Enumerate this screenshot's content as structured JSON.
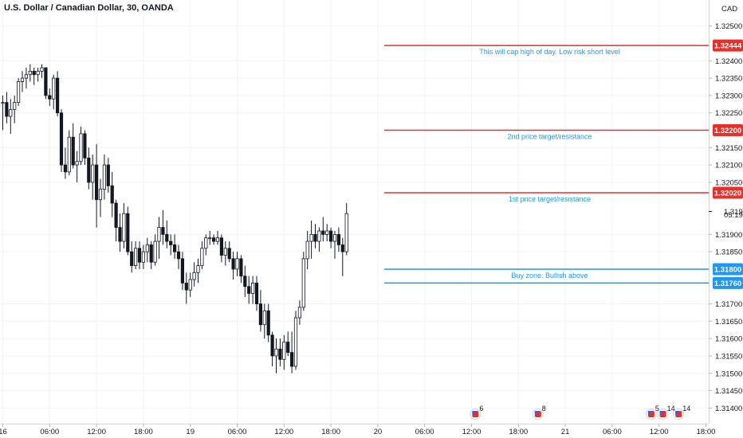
{
  "title": "U.S. Dollar / Canadian Dollar, 30, OANDA",
  "currency": "CAD",
  "countdown": "05:19",
  "colors": {
    "red": "#e8302a",
    "blue": "#2196f3",
    "up": "#ffffff",
    "down": "#131722",
    "grid": "#f0f3fa"
  },
  "chart_data": {
    "type": "candlestick",
    "y_ticks": [
      "1.32500",
      "1.32400",
      "1.32350",
      "1.32300",
      "1.32250",
      "1.32150",
      "1.32100",
      "1.32050",
      "1.31900",
      "1.31850",
      "1.31700",
      "1.31650",
      "1.31600",
      "1.31550",
      "1.31500",
      "1.31450",
      "1.31400"
    ],
    "ylim": [
      1.31355,
      1.32575
    ],
    "x_ticks": [
      {
        "label": "16",
        "slot": 0
      },
      {
        "label": "06:00",
        "slot": 12
      },
      {
        "label": "12:00",
        "slot": 24
      },
      {
        "label": "18:00",
        "slot": 36
      },
      {
        "label": "19",
        "slot": 48
      },
      {
        "label": "06:00",
        "slot": 60
      },
      {
        "label": "12:00",
        "slot": 72
      },
      {
        "label": "18:00",
        "slot": 84
      },
      {
        "label": "20",
        "slot": 96
      },
      {
        "label": "06:00",
        "slot": 108
      },
      {
        "label": "12:00",
        "slot": 120
      },
      {
        "label": "18:00",
        "slot": 132
      },
      {
        "label": "21",
        "slot": 144
      },
      {
        "label": "06:00",
        "slot": 156
      },
      {
        "label": "12:00",
        "slot": 168
      },
      {
        "label": "18:00",
        "slot": 180
      }
    ],
    "levels": [
      {
        "price": 1.32444,
        "label": "1.32444",
        "color": "red",
        "note": "This will cap high of day. Low risk short level"
      },
      {
        "price": 1.322,
        "label": "1.32200",
        "color": "red",
        "note": "2nd price target/resistance"
      },
      {
        "price": 1.3202,
        "label": "1.32020",
        "color": "red",
        "note": "1st price target/resistance"
      },
      {
        "price": 1.318,
        "label": "1.31800",
        "color": "blue",
        "note": "Buy zone. Bullish above"
      },
      {
        "price": 1.3176,
        "label": "1.31760",
        "color": "blue",
        "note": ""
      }
    ],
    "last_price": "1.31966",
    "events": [
      {
        "slot": 121,
        "count": "6"
      },
      {
        "slot": 137,
        "count": "8"
      },
      {
        "slot": 166,
        "count": "5"
      },
      {
        "slot": 169,
        "count": "14"
      },
      {
        "slot": 173,
        "count": "14"
      }
    ],
    "ohlc": [
      [
        1.3228,
        1.323,
        1.322,
        1.3228
      ],
      [
        1.3228,
        1.3231,
        1.3222,
        1.3224
      ],
      [
        1.3224,
        1.3229,
        1.3219,
        1.3226
      ],
      [
        1.3226,
        1.323,
        1.3222,
        1.3228
      ],
      [
        1.3228,
        1.3235,
        1.3227,
        1.3234
      ],
      [
        1.3234,
        1.3237,
        1.3231,
        1.3235
      ],
      [
        1.3235,
        1.3238,
        1.3232,
        1.3236
      ],
      [
        1.3236,
        1.3239,
        1.3234,
        1.3237
      ],
      [
        1.3237,
        1.3238,
        1.3233,
        1.3236
      ],
      [
        1.3236,
        1.3238,
        1.3234,
        1.3237
      ],
      [
        1.3237,
        1.3239,
        1.3235,
        1.3238
      ],
      [
        1.3238,
        1.3238,
        1.3229,
        1.323
      ],
      [
        1.323,
        1.3232,
        1.3227,
        1.3229
      ],
      [
        1.3229,
        1.3236,
        1.3226,
        1.3235
      ],
      [
        1.3235,
        1.3237,
        1.3224,
        1.3225
      ],
      [
        1.3225,
        1.3226,
        1.3208,
        1.321
      ],
      [
        1.321,
        1.3215,
        1.3206,
        1.3208
      ],
      [
        1.3208,
        1.322,
        1.3207,
        1.3218
      ],
      [
        1.3218,
        1.3222,
        1.3209,
        1.321
      ],
      [
        1.321,
        1.3214,
        1.3205,
        1.3211
      ],
      [
        1.3211,
        1.3221,
        1.321,
        1.3219
      ],
      [
        1.3219,
        1.322,
        1.321,
        1.3212
      ],
      [
        1.3212,
        1.3215,
        1.3203,
        1.3205
      ],
      [
        1.3205,
        1.3213,
        1.32,
        1.321
      ],
      [
        1.321,
        1.3216,
        1.3192,
        1.32
      ],
      [
        1.32,
        1.3206,
        1.3195,
        1.3203
      ],
      [
        1.3203,
        1.3213,
        1.32,
        1.321
      ],
      [
        1.321,
        1.3212,
        1.3202,
        1.3204
      ],
      [
        1.3204,
        1.3208,
        1.3195,
        1.3199
      ],
      [
        1.3199,
        1.32,
        1.3188,
        1.3192
      ],
      [
        1.3192,
        1.3196,
        1.3185,
        1.3188
      ],
      [
        1.3188,
        1.3199,
        1.3186,
        1.3196
      ],
      [
        1.3196,
        1.3198,
        1.3184,
        1.3185
      ],
      [
        1.3185,
        1.3188,
        1.3179,
        1.3181
      ],
      [
        1.3181,
        1.3188,
        1.318,
        1.3186
      ],
      [
        1.3186,
        1.3188,
        1.318,
        1.3182
      ],
      [
        1.3182,
        1.3187,
        1.318,
        1.3185
      ],
      [
        1.3185,
        1.3189,
        1.3182,
        1.3187
      ],
      [
        1.3187,
        1.3188,
        1.318,
        1.3182
      ],
      [
        1.3182,
        1.319,
        1.3181,
        1.3188
      ],
      [
        1.3188,
        1.3195,
        1.3183,
        1.3192
      ],
      [
        1.3192,
        1.3197,
        1.3187,
        1.319
      ],
      [
        1.319,
        1.3194,
        1.3186,
        1.3188
      ],
      [
        1.3188,
        1.319,
        1.3184,
        1.3187
      ],
      [
        1.3187,
        1.319,
        1.3183,
        1.3185
      ],
      [
        1.3185,
        1.3187,
        1.318,
        1.3183
      ],
      [
        1.3183,
        1.3185,
        1.3174,
        1.3176
      ],
      [
        1.3176,
        1.3179,
        1.317,
        1.3174
      ],
      [
        1.3174,
        1.3179,
        1.3172,
        1.3177
      ],
      [
        1.3177,
        1.3182,
        1.3175,
        1.3179
      ],
      [
        1.3179,
        1.3183,
        1.3176,
        1.3181
      ],
      [
        1.3181,
        1.3188,
        1.318,
        1.3186
      ],
      [
        1.3186,
        1.319,
        1.3184,
        1.3189
      ],
      [
        1.3189,
        1.3191,
        1.3187,
        1.3189
      ],
      [
        1.3189,
        1.319,
        1.3187,
        1.3188
      ],
      [
        1.3188,
        1.3191,
        1.3187,
        1.3189
      ],
      [
        1.3189,
        1.319,
        1.3182,
        1.3184
      ],
      [
        1.3184,
        1.3188,
        1.3181,
        1.3186
      ],
      [
        1.3186,
        1.3188,
        1.3182,
        1.3183
      ],
      [
        1.3183,
        1.3185,
        1.3177,
        1.318
      ],
      [
        1.318,
        1.3185,
        1.3178,
        1.3183
      ],
      [
        1.3183,
        1.3184,
        1.3176,
        1.3178
      ],
      [
        1.3178,
        1.3181,
        1.3172,
        1.3175
      ],
      [
        1.3175,
        1.3178,
        1.317,
        1.3173
      ],
      [
        1.3173,
        1.3178,
        1.317,
        1.3176
      ],
      [
        1.3176,
        1.3178,
        1.3168,
        1.317
      ],
      [
        1.317,
        1.3174,
        1.3162,
        1.3164
      ],
      [
        1.3164,
        1.317,
        1.316,
        1.3168
      ],
      [
        1.3168,
        1.317,
        1.3159,
        1.3161
      ],
      [
        1.3161,
        1.3162,
        1.3152,
        1.3155
      ],
      [
        1.3155,
        1.316,
        1.315,
        1.3157
      ],
      [
        1.3157,
        1.316,
        1.3152,
        1.3154
      ],
      [
        1.3154,
        1.3161,
        1.3151,
        1.3159
      ],
      [
        1.3159,
        1.3162,
        1.3155,
        1.3156
      ],
      [
        1.3156,
        1.3162,
        1.315,
        1.3152
      ],
      [
        1.3152,
        1.3168,
        1.3151,
        1.3166
      ],
      [
        1.3166,
        1.3171,
        1.3164,
        1.3169
      ],
      [
        1.3169,
        1.3185,
        1.3168,
        1.3183
      ],
      [
        1.3183,
        1.3191,
        1.318,
        1.3188
      ],
      [
        1.3188,
        1.3194,
        1.3183,
        1.319
      ],
      [
        1.319,
        1.3193,
        1.3186,
        1.3188
      ],
      [
        1.3188,
        1.3192,
        1.3185,
        1.3191
      ],
      [
        1.3191,
        1.3195,
        1.3188,
        1.319
      ],
      [
        1.319,
        1.3193,
        1.3188,
        1.3191
      ],
      [
        1.3191,
        1.3192,
        1.3186,
        1.3188
      ],
      [
        1.3188,
        1.3191,
        1.3183,
        1.319
      ],
      [
        1.319,
        1.3192,
        1.3185,
        1.3187
      ],
      [
        1.3187,
        1.3189,
        1.3178,
        1.3185
      ],
      [
        1.3185,
        1.3199,
        1.3184,
        1.3196
      ]
    ]
  }
}
